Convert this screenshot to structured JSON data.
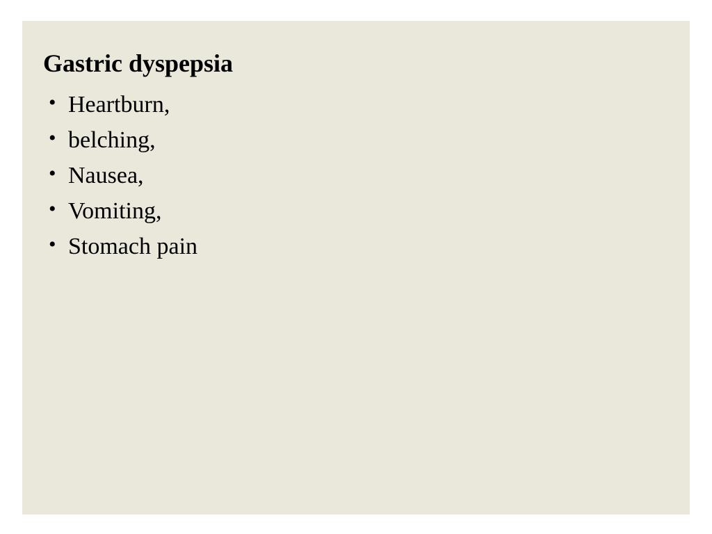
{
  "slide": {
    "title": "Gastric dyspepsia",
    "bullets": [
      "Heartburn,",
      "belching,",
      "Nausea,",
      "Vomiting,",
      "Stomach pain"
    ],
    "background_color": "#eae7db",
    "page_background": "#ffffff",
    "text_color": "#000000",
    "title_fontsize": 36,
    "title_fontweight": "bold",
    "bullet_fontsize": 34,
    "font_family": "Times New Roman"
  }
}
